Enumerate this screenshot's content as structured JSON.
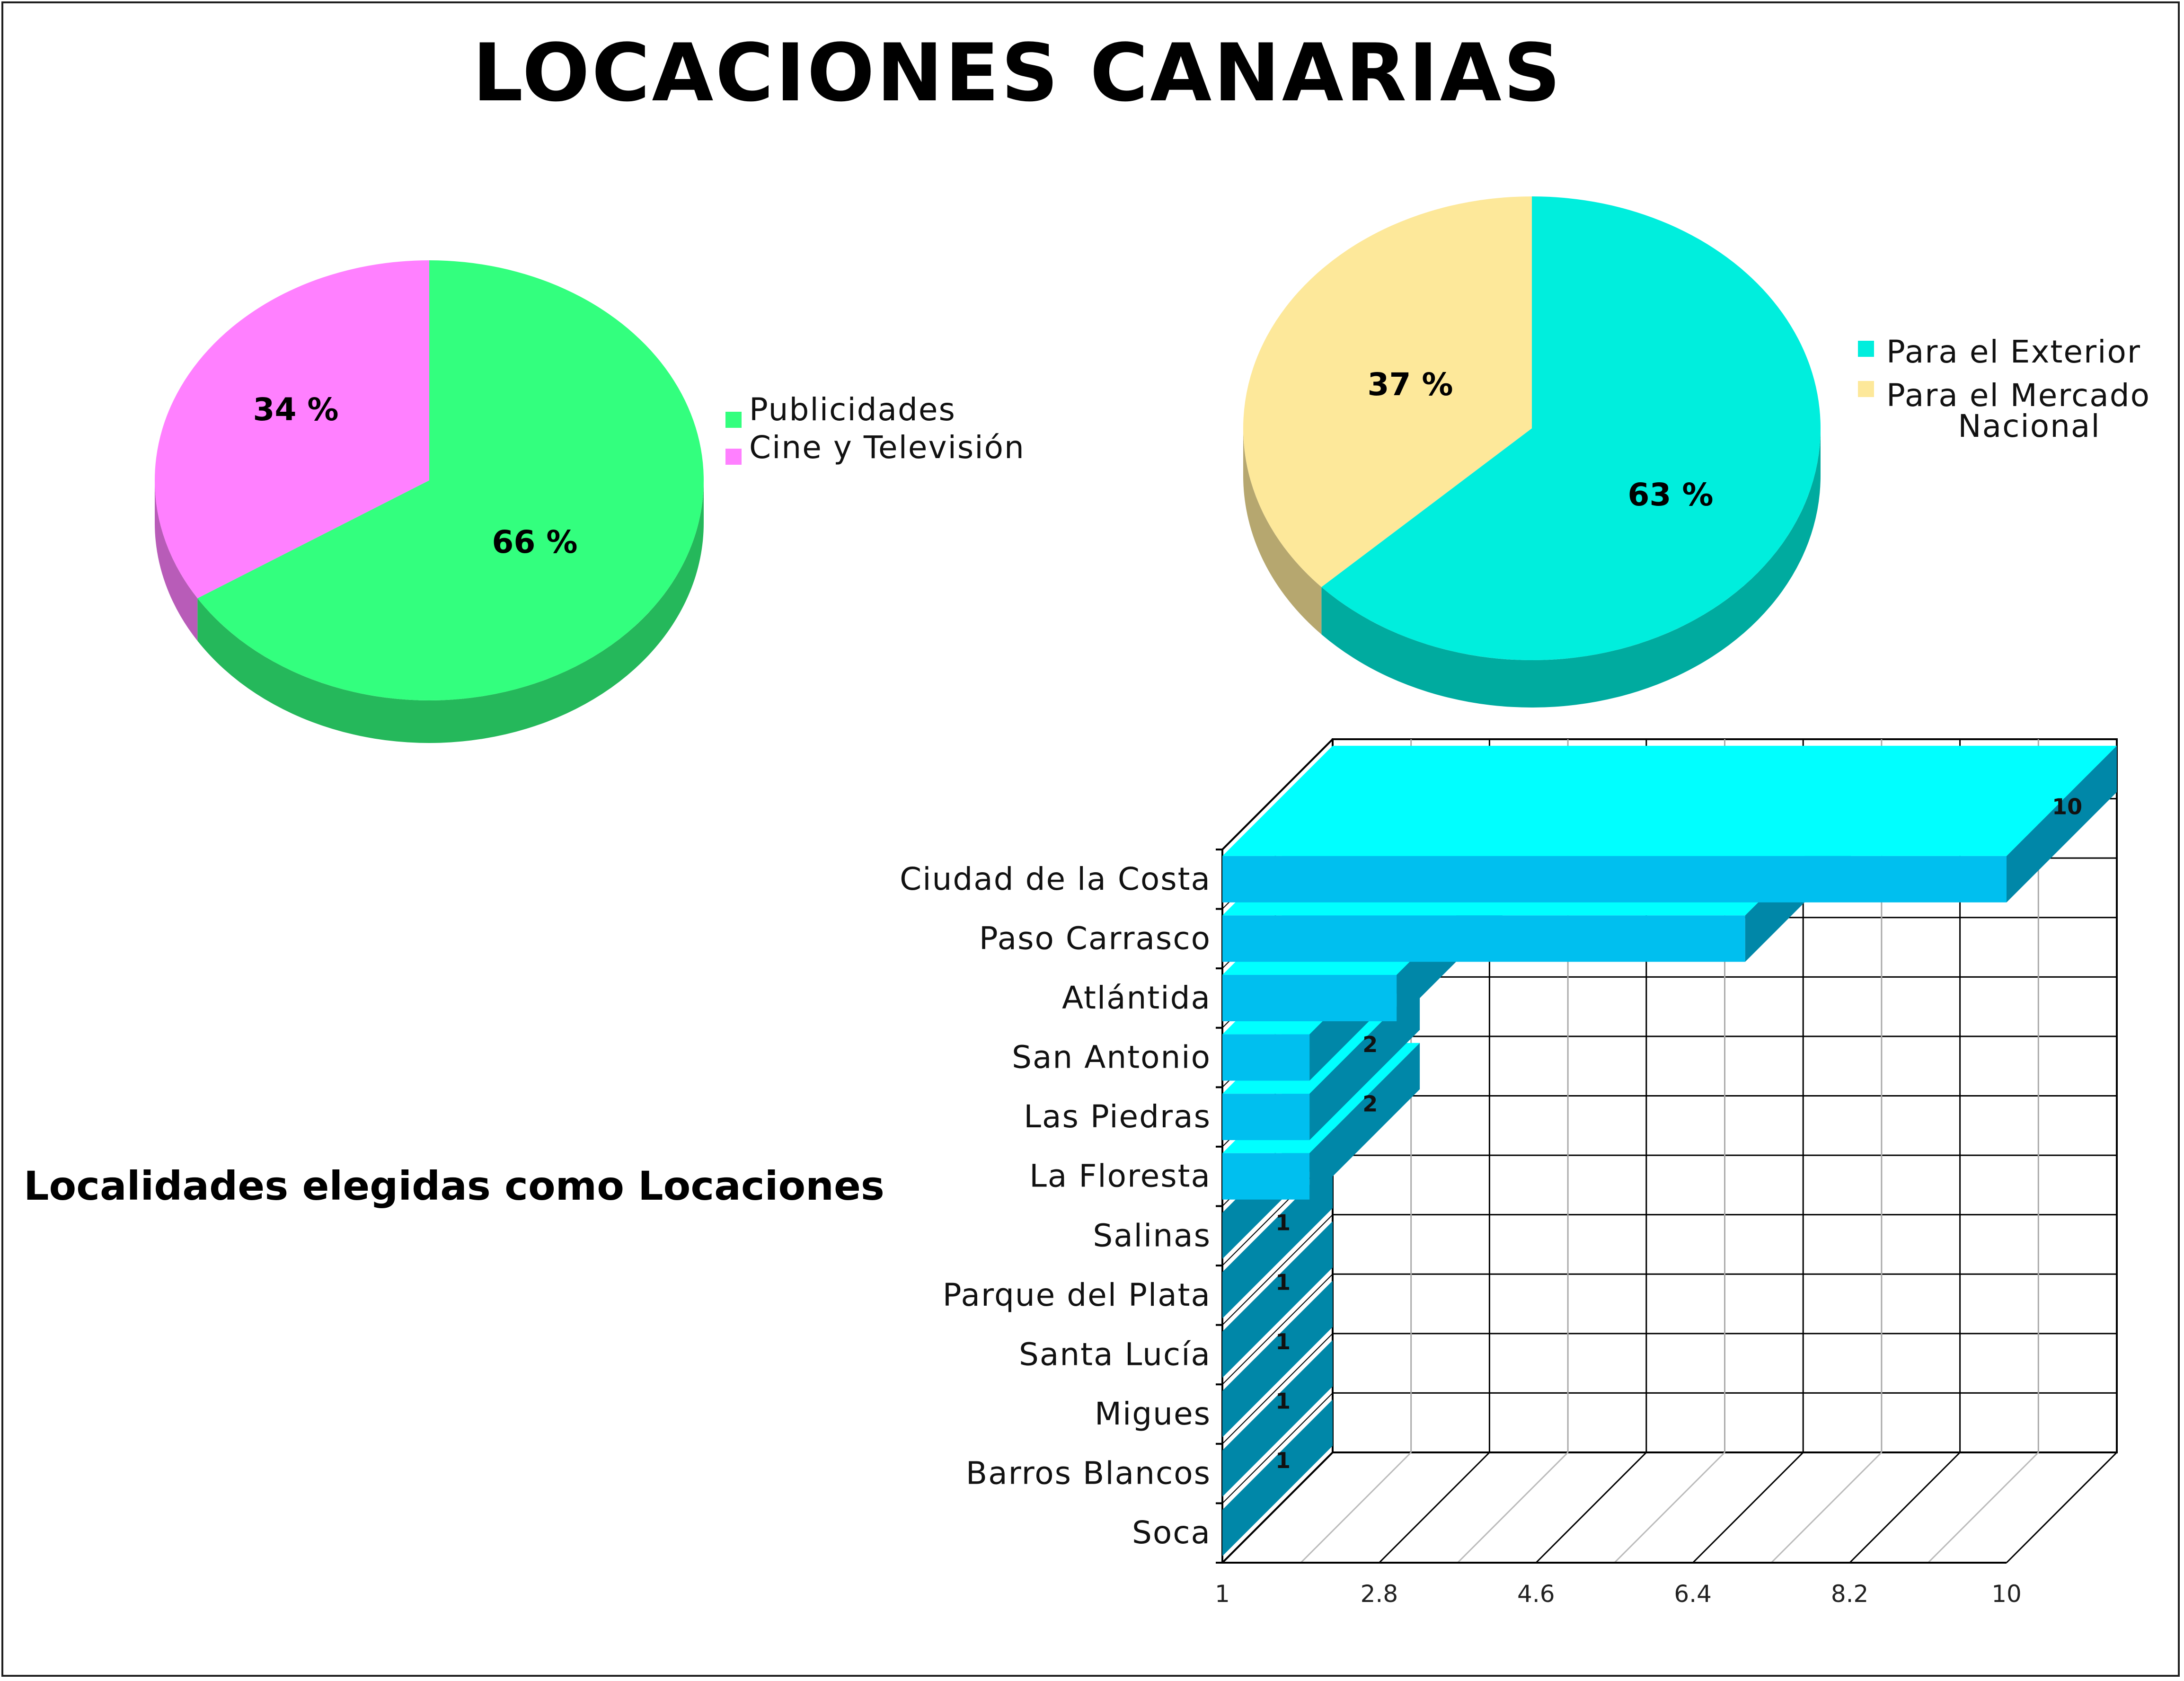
{
  "title": "LOCACIONES CANARIAS",
  "colors": {
    "publicidades": "#33FF7E",
    "cine": "#FF80FF",
    "exterior": "#00EEDD",
    "mercado": "#FDE89A",
    "bar_top": "#00FFFF",
    "bar_front": "#00BFEF",
    "bar_side": "#0087A8"
  },
  "chart_data": [
    {
      "type": "pie",
      "title": "",
      "legend_position": "right",
      "slices": [
        {
          "label": "Publicidades",
          "value": 66,
          "display": "66 %"
        },
        {
          "label": "Cine y Televisión",
          "value": 34,
          "display": "34 %"
        }
      ]
    },
    {
      "type": "pie",
      "title": "",
      "legend_position": "right",
      "slices": [
        {
          "label": "Para el Exterior",
          "value": 63,
          "display": "63 %"
        },
        {
          "label": "Para el Mercado Nacional",
          "value": 37,
          "display": "37 %"
        }
      ]
    },
    {
      "type": "bar",
      "orientation": "horizontal",
      "title": "Localidades elegidas como Locaciones",
      "categories": [
        "Ciudad de la Costa",
        "Paso Carrasco",
        "Atlántida",
        "San Antonio",
        "Las Piedras",
        "La Floresta",
        "Salinas",
        "Parque del Plata",
        "Santa Lucía",
        "Migues",
        "Barros Blancos",
        "Soca"
      ],
      "values": [
        10,
        7,
        3,
        2,
        2,
        2,
        1,
        1,
        1,
        1,
        1,
        1
      ],
      "xlim": [
        1,
        10
      ],
      "xticks": [
        "1",
        "2.8",
        "4.6",
        "6.4",
        "8.2",
        "10"
      ],
      "grid": true
    }
  ]
}
